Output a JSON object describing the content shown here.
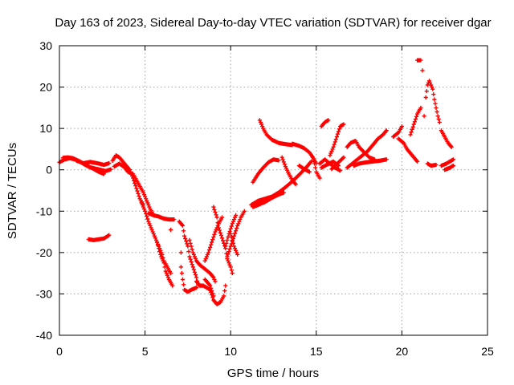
{
  "chart_data": {
    "type": "scatter",
    "title": "Day 163 of 2023, Sidereal Day-to-day VTEC variation (SDTVAR) for receiver dgar",
    "xlabel": "GPS time / hours",
    "ylabel": "SDTVAR / TECUs",
    "xlim": [
      0,
      25
    ],
    "ylim": [
      -40,
      30
    ],
    "xticks": [
      0,
      5,
      10,
      15,
      20,
      25
    ],
    "yticks": [
      -40,
      -30,
      -20,
      -10,
      0,
      10,
      20,
      30
    ],
    "grid": true,
    "marker": "+",
    "color": "#ff0000",
    "tracks": [
      [
        [
          0.0,
          1.8
        ],
        [
          0.3,
          2.5
        ],
        [
          0.6,
          2.8
        ],
        [
          0.9,
          2.5
        ],
        [
          1.2,
          2.0
        ],
        [
          1.5,
          1.2
        ],
        [
          1.8,
          0.6
        ],
        [
          2.1,
          0.3
        ],
        [
          2.4,
          0.0
        ],
        [
          2.7,
          -0.3
        ],
        [
          3.0,
          0.1
        ]
      ],
      [
        [
          0.2,
          2.9
        ],
        [
          0.5,
          3.0
        ],
        [
          0.8,
          2.8
        ],
        [
          1.1,
          2.2
        ],
        [
          1.4,
          1.5
        ],
        [
          1.7,
          0.8
        ],
        [
          2.0,
          0.2
        ],
        [
          2.3,
          -0.5
        ],
        [
          2.6,
          -1.0
        ]
      ],
      [
        [
          1.0,
          2.2
        ],
        [
          1.4,
          1.6
        ],
        [
          1.8,
          1.9
        ],
        [
          2.2,
          1.6
        ],
        [
          2.6,
          1.2
        ],
        [
          2.9,
          1.6
        ]
      ],
      [
        [
          1.7,
          -16.8
        ],
        [
          2.0,
          -17.0
        ],
        [
          2.3,
          -16.8
        ],
        [
          2.6,
          -16.6
        ],
        [
          2.9,
          -15.8
        ]
      ],
      [
        [
          3.1,
          2.2
        ],
        [
          3.3,
          3.5
        ],
        [
          3.5,
          3.0
        ],
        [
          3.7,
          2.0
        ],
        [
          3.9,
          1.0
        ],
        [
          4.1,
          0.0
        ],
        [
          4.3,
          -2.0
        ],
        [
          4.5,
          -4.5
        ],
        [
          4.7,
          -7.0
        ],
        [
          4.9,
          -8.5
        ]
      ],
      [
        [
          3.2,
          0.8
        ],
        [
          3.5,
          1.5
        ],
        [
          3.8,
          0.6
        ],
        [
          4.0,
          -0.5
        ],
        [
          4.3,
          -1.0
        ],
        [
          4.5,
          -2.5
        ],
        [
          4.7,
          -4.0
        ],
        [
          4.9,
          -5.5
        ],
        [
          5.1,
          -7.5
        ],
        [
          5.3,
          -9.5
        ],
        [
          5.5,
          -11.0
        ]
      ],
      [
        [
          4.8,
          -8.0
        ],
        [
          5.0,
          -10.0
        ],
        [
          5.2,
          -12.5
        ],
        [
          5.4,
          -14.5
        ],
        [
          5.6,
          -16.5
        ],
        [
          5.8,
          -18.5
        ],
        [
          6.0,
          -20.5
        ],
        [
          6.1,
          -22.0
        ],
        [
          6.3,
          -23.5
        ],
        [
          6.5,
          -25.0
        ]
      ],
      [
        [
          5.2,
          -10.5
        ],
        [
          5.5,
          -11.0
        ],
        [
          5.8,
          -11.3
        ],
        [
          6.1,
          -11.8
        ],
        [
          6.4,
          -12.0
        ],
        [
          6.7,
          -12.0
        ]
      ],
      [
        [
          5.7,
          -17.5
        ],
        [
          5.9,
          -20.5
        ],
        [
          6.1,
          -22.5
        ],
        [
          6.2,
          -24.5
        ],
        [
          6.4,
          -26.5
        ],
        [
          6.6,
          -28.0
        ]
      ],
      [
        [
          6.5,
          -14.5
        ]
      ],
      [
        [
          7.0,
          -12.5
        ],
        [
          7.2,
          -13.5
        ],
        [
          7.3,
          -16.0
        ],
        [
          7.5,
          -18.5
        ],
        [
          7.6,
          -21.0
        ],
        [
          7.8,
          -23.5
        ],
        [
          8.0,
          -26.0
        ],
        [
          8.1,
          -27.8
        ]
      ],
      [
        [
          7.1,
          -20.0
        ],
        [
          7.1,
          -23.5
        ],
        [
          7.2,
          -26.5
        ],
        [
          7.3,
          -29.0
        ],
        [
          7.5,
          -29.5
        ],
        [
          7.7,
          -29.0
        ],
        [
          8.0,
          -28.5
        ]
      ],
      [
        [
          7.6,
          -17.0
        ],
        [
          7.8,
          -20.0
        ],
        [
          8.0,
          -22.0
        ],
        [
          8.2,
          -23.0
        ],
        [
          8.5,
          -24.0
        ],
        [
          8.8,
          -25.0
        ],
        [
          9.0,
          -26.0
        ],
        [
          9.1,
          -27.0
        ]
      ],
      [
        [
          8.0,
          -27.0
        ],
        [
          8.2,
          -28.0
        ],
        [
          8.4,
          -28.0
        ],
        [
          8.6,
          -28.5
        ],
        [
          8.8,
          -29.0
        ],
        [
          9.0,
          -31.5
        ],
        [
          9.2,
          -32.5
        ],
        [
          9.4,
          -32.0
        ],
        [
          9.6,
          -30.5
        ],
        [
          9.7,
          -28.0
        ]
      ],
      [
        [
          8.5,
          -26.5
        ],
        [
          8.8,
          -28.0
        ],
        [
          9.0,
          -30.5
        ]
      ],
      [
        [
          9.0,
          -9.0
        ],
        [
          9.2,
          -11.5
        ],
        [
          9.3,
          -14.0
        ],
        [
          9.5,
          -16.5
        ],
        [
          9.7,
          -19.0
        ],
        [
          9.8,
          -21.5
        ],
        [
          10.0,
          -23.5
        ],
        [
          10.1,
          -25.0
        ]
      ],
      [
        [
          8.5,
          -22.0
        ],
        [
          8.7,
          -20.0
        ],
        [
          8.9,
          -17.5
        ],
        [
          9.1,
          -15.0
        ],
        [
          9.3,
          -13.0
        ],
        [
          9.5,
          -11.5
        ]
      ],
      [
        [
          9.8,
          -21.0
        ],
        [
          10.0,
          -18.5
        ],
        [
          10.2,
          -16.0
        ],
        [
          10.4,
          -13.5
        ],
        [
          10.6,
          -11.5
        ],
        [
          10.8,
          -10.0
        ]
      ],
      [
        [
          9.7,
          -18.5
        ],
        [
          9.9,
          -15.5
        ],
        [
          10.1,
          -13.0
        ],
        [
          10.3,
          -11.0
        ]
      ],
      [
        [
          10.0,
          -15.5
        ],
        [
          10.2,
          -18.5
        ],
        [
          10.4,
          -20.5
        ]
      ],
      [
        [
          11.3,
          -9.0
        ],
        [
          11.6,
          -8.5
        ],
        [
          12.0,
          -7.8
        ],
        [
          12.4,
          -6.8
        ],
        [
          12.8,
          -6.0
        ],
        [
          13.1,
          -5.5
        ]
      ],
      [
        [
          11.2,
          -8.5
        ],
        [
          11.6,
          -7.5
        ],
        [
          12.0,
          -7.0
        ],
        [
          12.4,
          -6.5
        ],
        [
          12.8,
          -5.5
        ],
        [
          13.2,
          -4.2
        ],
        [
          13.6,
          -2.8
        ],
        [
          14.0,
          -1.2
        ],
        [
          14.4,
          0.5
        ],
        [
          14.7,
          2.0
        ]
      ],
      [
        [
          11.3,
          -3.0
        ],
        [
          11.6,
          -1.0
        ],
        [
          11.9,
          0.5
        ],
        [
          12.2,
          1.8
        ],
        [
          12.5,
          2.5
        ],
        [
          12.8,
          2.3
        ]
      ],
      [
        [
          11.7,
          12.0
        ],
        [
          11.9,
          10.0
        ],
        [
          12.1,
          8.5
        ],
        [
          12.4,
          7.3
        ],
        [
          12.8,
          6.5
        ],
        [
          13.2,
          6.2
        ],
        [
          13.6,
          6.0
        ]
      ],
      [
        [
          13.0,
          3.0
        ],
        [
          13.2,
          0.8
        ],
        [
          13.4,
          -1.0
        ],
        [
          13.6,
          -2.5
        ],
        [
          13.8,
          -3.5
        ]
      ],
      [
        [
          13.6,
          6.3
        ],
        [
          14.0,
          5.8
        ],
        [
          14.3,
          5.2
        ],
        [
          14.6,
          4.2
        ],
        [
          14.8,
          3.0
        ],
        [
          15.0,
          1.6
        ]
      ],
      [
        [
          14.0,
          1.0
        ],
        [
          14.3,
          0.2
        ],
        [
          14.6,
          -0.5
        ]
      ],
      [
        [
          14.8,
          3.0
        ],
        [
          14.9,
          1.5
        ],
        [
          15.0,
          -0.5
        ],
        [
          15.2,
          -2.0
        ]
      ],
      [
        [
          15.2,
          1.5
        ],
        [
          15.5,
          2.5
        ],
        [
          15.8,
          1.5
        ],
        [
          16.1,
          0.5
        ],
        [
          16.4,
          -0.2
        ]
      ],
      [
        [
          15.3,
          0.5
        ],
        [
          15.6,
          1.2
        ],
        [
          16.0,
          2.0
        ],
        [
          16.3,
          1.0
        ]
      ],
      [
        [
          15.3,
          10.5
        ],
        [
          15.5,
          11.5
        ],
        [
          15.7,
          12.0
        ]
      ],
      [
        [
          15.8,
          3.5
        ],
        [
          16.0,
          5.5
        ],
        [
          16.2,
          8.0
        ],
        [
          16.4,
          10.5
        ],
        [
          16.6,
          11.0
        ]
      ],
      [
        [
          15.9,
          0.2
        ],
        [
          16.1,
          1.0
        ],
        [
          16.4,
          2.2
        ],
        [
          16.6,
          3.0
        ]
      ],
      [
        [
          16.8,
          5.5
        ],
        [
          17.0,
          6.5
        ],
        [
          17.3,
          7.0
        ],
        [
          17.5,
          5.5
        ],
        [
          17.8,
          4.2
        ],
        [
          18.1,
          3.0
        ],
        [
          18.4,
          2.5
        ]
      ],
      [
        [
          16.8,
          0.5
        ],
        [
          17.1,
          1.5
        ],
        [
          17.4,
          2.5
        ],
        [
          17.7,
          3.5
        ],
        [
          18.0,
          4.5
        ],
        [
          18.3,
          6.0
        ],
        [
          18.6,
          7.5
        ],
        [
          18.9,
          8.5
        ],
        [
          19.1,
          9.5
        ]
      ],
      [
        [
          17.2,
          1.0
        ],
        [
          17.5,
          1.5
        ],
        [
          17.9,
          1.8
        ],
        [
          18.3,
          2.0
        ],
        [
          18.7,
          2.2
        ],
        [
          19.1,
          2.5
        ]
      ],
      [
        [
          19.5,
          8.0
        ],
        [
          19.8,
          9.0
        ],
        [
          20.0,
          10.5
        ]
      ],
      [
        [
          19.8,
          7.5
        ],
        [
          20.1,
          6.5
        ],
        [
          20.3,
          5.0
        ],
        [
          20.6,
          3.5
        ],
        [
          20.9,
          2.0
        ]
      ],
      [
        [
          20.5,
          8.5
        ],
        [
          20.7,
          11.0
        ],
        [
          20.9,
          13.5
        ],
        [
          21.1,
          15.0
        ]
      ],
      [
        [
          20.9,
          26.5
        ],
        [
          21.1,
          26.5
        ]
      ],
      [
        [
          21.2,
          24.0
        ]
      ],
      [
        [
          21.3,
          13.0
        ]
      ],
      [
        [
          21.4,
          17.5
        ],
        [
          21.5,
          20.5
        ],
        [
          21.6,
          21.5
        ],
        [
          21.8,
          19.5
        ],
        [
          21.9,
          17.0
        ],
        [
          22.0,
          15.0
        ],
        [
          22.1,
          13.0
        ],
        [
          22.2,
          11.5
        ]
      ],
      [
        [
          21.5,
          1.5
        ],
        [
          21.7,
          1.0
        ],
        [
          22.0,
          1.2
        ]
      ],
      [
        [
          22.3,
          9.5
        ],
        [
          22.5,
          8.0
        ],
        [
          22.7,
          6.5
        ],
        [
          22.9,
          5.5
        ]
      ],
      [
        [
          22.3,
          1.0
        ],
        [
          22.6,
          1.5
        ],
        [
          22.8,
          2.0
        ],
        [
          23.0,
          2.5
        ]
      ],
      [
        [
          22.5,
          0.0
        ],
        [
          22.8,
          0.5
        ],
        [
          23.0,
          1.0
        ]
      ]
    ]
  }
}
